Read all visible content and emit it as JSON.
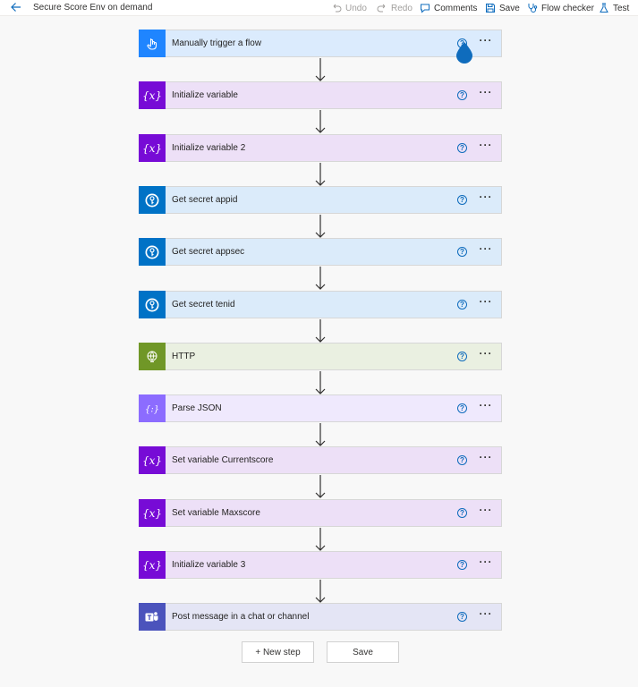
{
  "header": {
    "back_icon": "back-arrow-icon",
    "title": "Secure Score Env on demand",
    "commands": {
      "undo": "Undo",
      "redo": "Redo",
      "comments": "Comments",
      "save": "Save",
      "flow_checker": "Flow checker",
      "test": "Test"
    }
  },
  "steps": [
    {
      "label": "Manually trigger a flow",
      "type": "trigger",
      "color": "#1f85ff"
    },
    {
      "label": "Initialize variable",
      "type": "variable",
      "color": "#770bd6"
    },
    {
      "label": "Initialize variable 2",
      "type": "variable",
      "color": "#770bd6"
    },
    {
      "label": "Get secret appid",
      "type": "keyvault",
      "color": "#0072c6"
    },
    {
      "label": "Get secret appsec",
      "type": "keyvault",
      "color": "#0072c6"
    },
    {
      "label": "Get secret tenid",
      "type": "keyvault",
      "color": "#0072c6"
    },
    {
      "label": "HTTP",
      "type": "http",
      "color": "#709727"
    },
    {
      "label": "Parse JSON",
      "type": "json",
      "color": "#8c6cff"
    },
    {
      "label": "Set variable Currentscore",
      "type": "variable",
      "color": "#770bd6"
    },
    {
      "label": "Set variable Maxscore",
      "type": "variable",
      "color": "#770bd6"
    },
    {
      "label": "Initialize variable 3",
      "type": "variable",
      "color": "#770bd6"
    },
    {
      "label": "Post message in a chat or channel",
      "type": "teams",
      "color": "#4b53bc"
    }
  ],
  "help_glyph": "?",
  "more_glyph": "···",
  "bottom": {
    "new_step": "+ New step",
    "save": "Save"
  }
}
